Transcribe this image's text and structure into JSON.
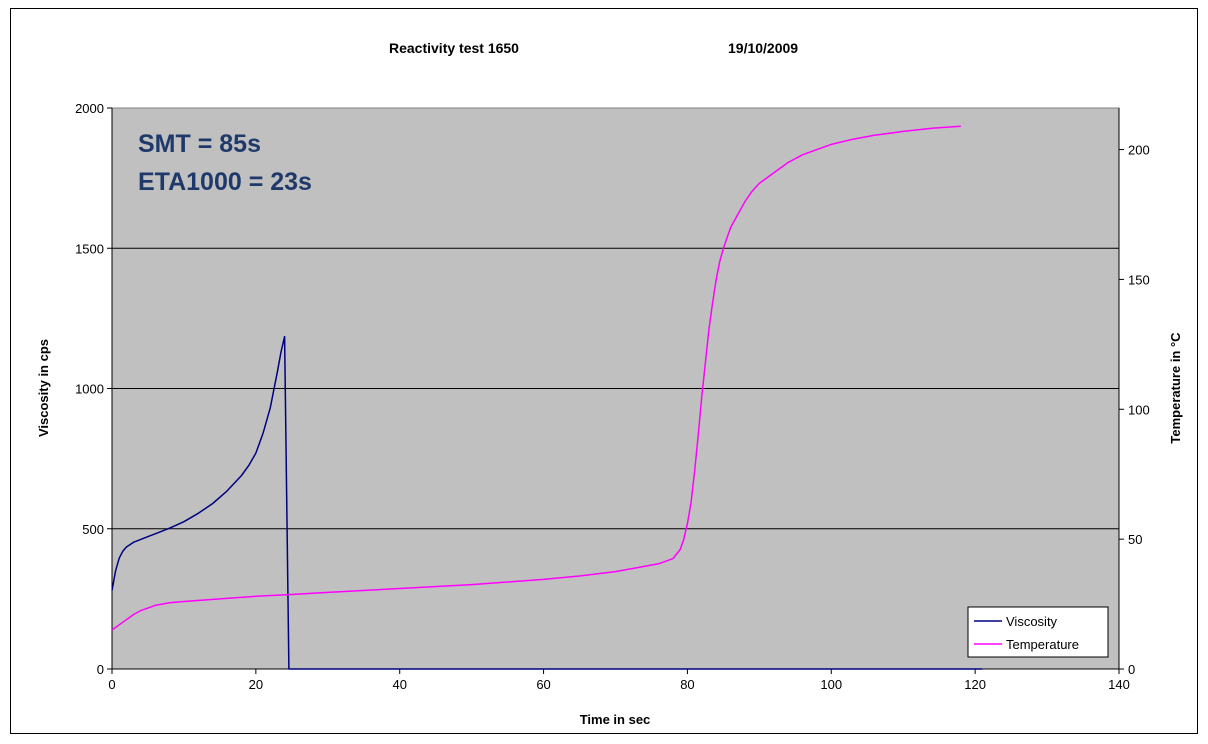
{
  "chart_data": {
    "type": "line",
    "title": "Reactivity test 1650",
    "date": "19/10/2009",
    "xlabel": "Time in sec",
    "ylabel": "Viscosity in cps",
    "y2label": "Temperature in °C",
    "xlim": [
      0,
      140
    ],
    "ylim": [
      0,
      2000
    ],
    "y2lim": [
      0,
      216
    ],
    "x_ticks": [
      0,
      20,
      40,
      60,
      80,
      100,
      120,
      140
    ],
    "y_ticks": [
      0,
      500,
      1000,
      1500,
      2000
    ],
    "y2_ticks": [
      0,
      50,
      100,
      150,
      200
    ],
    "grid": "horizontal major gridlines",
    "plot_background": "#C0C0C0",
    "annotations": [
      "SMT = 85s",
      "ETA1000 = 23s"
    ],
    "legend_position": "bottom-right",
    "series": [
      {
        "name": "Viscosity",
        "axis": "left",
        "color": "#000080",
        "x": [
          0,
          0.5,
          1,
          1.5,
          2,
          3,
          4,
          5,
          6,
          8,
          10,
          12,
          14,
          16,
          18,
          19,
          20,
          21,
          22,
          23,
          23.5,
          24,
          24.6,
          25,
          40,
          60,
          80,
          100,
          121
        ],
        "y": [
          280,
          350,
          395,
          420,
          435,
          452,
          462,
          472,
          482,
          502,
          525,
          555,
          590,
          635,
          690,
          725,
          770,
          840,
          930,
          1060,
          1130,
          1185,
          0,
          0,
          0,
          0,
          0,
          0,
          0
        ]
      },
      {
        "name": "Temperature",
        "axis": "right",
        "color": "#FF00FF",
        "x": [
          0,
          1,
          2,
          3,
          4,
          6,
          8,
          10,
          15,
          20,
          25,
          30,
          40,
          50,
          60,
          65,
          70,
          74,
          76,
          77,
          78,
          79,
          79.5,
          80,
          80.5,
          81,
          81.5,
          82,
          82.5,
          83,
          83.5,
          84,
          84.5,
          85,
          86,
          87,
          88,
          89,
          90,
          92,
          94,
          96,
          98,
          100,
          103,
          106,
          110,
          114,
          118
        ],
        "y": [
          15,
          17,
          19,
          21,
          22.5,
          24.5,
          25.5,
          26,
          27,
          28,
          28.7,
          29.5,
          31,
          32.5,
          34.5,
          35.8,
          37.5,
          39.5,
          40.5,
          41.5,
          42.5,
          46,
          50,
          56,
          64,
          76,
          90,
          105,
          118,
          131,
          141,
          150,
          157,
          162,
          170,
          175,
          180,
          184,
          187,
          191,
          195,
          198,
          200,
          202,
          204,
          205.5,
          207,
          208.2,
          209
        ]
      }
    ]
  }
}
